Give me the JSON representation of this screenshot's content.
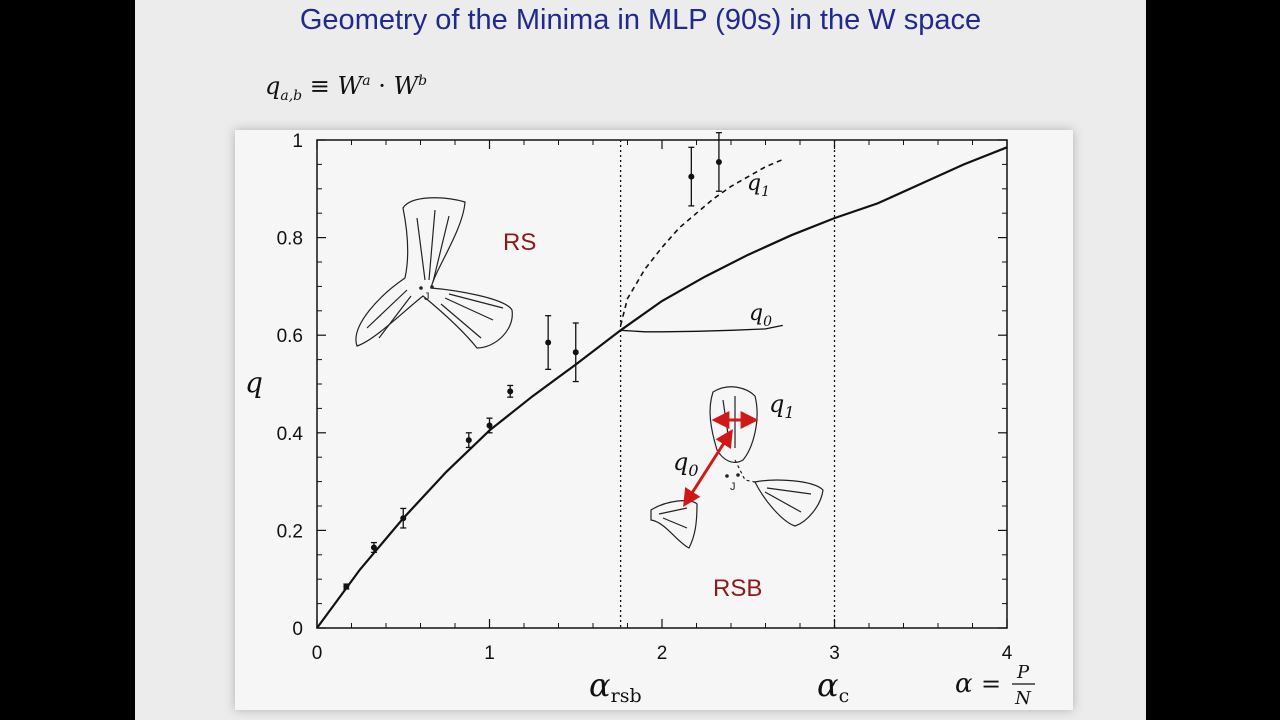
{
  "slide": {
    "title": "Geometry of the Minima in MLP (90s) in the W space",
    "formula": {
      "lhs": "q",
      "lhs_sub": "a,b",
      "equiv": "≡",
      "w1": "W",
      "w1_sup": "a",
      "dot": "·",
      "w2": "W",
      "w2_sup": "b"
    }
  },
  "colors": {
    "title": "#1f2a8c",
    "region_labels": "#8b1a1a",
    "arrows": "#d01818",
    "curves": "#111111"
  },
  "icons": [
    "valley-sketch-rs",
    "valley-sketch-rsb",
    "red-double-arrow"
  ],
  "chart_data": {
    "type": "line",
    "xlim": [
      0,
      4
    ],
    "ylim": [
      0,
      1
    ],
    "x_ticks": [
      "0",
      "1",
      "2",
      "3",
      "4"
    ],
    "y_ticks": [
      "0",
      "0.2",
      "0.4",
      "0.6",
      "0.8",
      "1"
    ],
    "ylabel": "q",
    "xlabel": {
      "lhs": "α",
      "eq": "=",
      "num": "P",
      "den": "N"
    },
    "grid": false,
    "vlines": [
      {
        "x": 1.76,
        "label_main": "α",
        "label_sub": "rsb",
        "style": "dotted"
      },
      {
        "x": 3.0,
        "label_main": "α",
        "label_sub": "c",
        "style": "dotted"
      }
    ],
    "series": [
      {
        "id": "q-main",
        "style": "solid",
        "x": [
          0,
          0.25,
          0.5,
          0.75,
          1.0,
          1.25,
          1.5,
          1.76,
          2.0,
          2.25,
          2.5,
          2.75,
          3.0,
          3.25,
          3.5,
          3.75,
          4.0
        ],
        "y": [
          0,
          0.12,
          0.225,
          0.32,
          0.405,
          0.475,
          0.54,
          0.61,
          0.67,
          0.72,
          0.765,
          0.805,
          0.84,
          0.87,
          0.91,
          0.95,
          0.985
        ]
      },
      {
        "id": "q1-curve",
        "name": "q",
        "name_sub": "1",
        "style": "dashed",
        "x": [
          1.76,
          1.8,
          1.9,
          2.0,
          2.1,
          2.2,
          2.3,
          2.4,
          2.5,
          2.6,
          2.7
        ],
        "y": [
          0.62,
          0.675,
          0.735,
          0.78,
          0.82,
          0.85,
          0.88,
          0.905,
          0.925,
          0.945,
          0.96
        ]
      },
      {
        "id": "q0-curve",
        "name": "q",
        "name_sub": "0",
        "style": "solid-thin",
        "x": [
          1.76,
          1.9,
          2.0,
          2.2,
          2.4,
          2.6,
          2.7
        ],
        "y": [
          0.61,
          0.607,
          0.607,
          0.608,
          0.61,
          0.613,
          0.62
        ]
      }
    ],
    "points": {
      "x": [
        0.17,
        0.33,
        0.5,
        0.88,
        1.0,
        1.12,
        1.34,
        1.5,
        2.17,
        2.33
      ],
      "y": [
        0.085,
        0.165,
        0.225,
        0.385,
        0.415,
        0.485,
        0.585,
        0.565,
        0.925,
        0.955
      ],
      "err": [
        0.005,
        0.01,
        0.02,
        0.015,
        0.015,
        0.012,
        0.055,
        0.06,
        0.06,
        0.06
      ]
    },
    "annotations": {
      "rs_label": "RS",
      "rsb_label": "RSB",
      "sketch_rs_label": "J",
      "sketch_rsb_label": "J",
      "sketch_q1": {
        "main": "q",
        "sub": "1"
      },
      "sketch_q0": {
        "main": "q",
        "sub": "0"
      }
    }
  }
}
